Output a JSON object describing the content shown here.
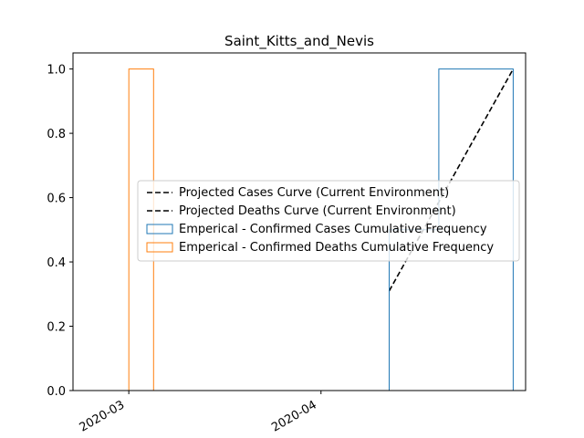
{
  "chart_data": {
    "type": "line",
    "title": "Saint_Kitts_and_Nevis",
    "xlabel": "",
    "ylabel": "",
    "x_axis": "date",
    "xlim": [
      "2020-02-21",
      "2020-05-04"
    ],
    "ylim": [
      0,
      1.05
    ],
    "x_tick_labels": [
      "2020-03",
      "2020-04"
    ],
    "x_tick_values": [
      "2020-03-01",
      "2020-04-01"
    ],
    "y_tick_labels": [
      "0.0",
      "0.2",
      "0.4",
      "0.6",
      "0.8",
      "1.0"
    ],
    "y_tick_values": [
      0,
      0.2,
      0.4,
      0.6,
      0.8,
      1.0
    ],
    "grid": false,
    "legend_position": "center-right",
    "series": [
      {
        "name": "Projected Cases Curve (Current Environment)",
        "kind": "line",
        "style": "dashed",
        "color": "#000000",
        "points": [
          [
            "2020-04-12",
            0.31
          ],
          [
            "2020-05-02",
            1.0
          ]
        ]
      },
      {
        "name": "Projected Deaths Curve (Current Environment)",
        "kind": "line",
        "style": "dashed",
        "color": "#000000",
        "points": []
      },
      {
        "name": "Emperical - Confirmed Cases Cumulative Frequency",
        "kind": "step",
        "color": "#1f77b4",
        "points": [
          [
            "2020-04-12",
            0
          ],
          [
            "2020-04-12",
            0.5
          ],
          [
            "2020-04-20",
            0.5
          ],
          [
            "2020-04-20",
            1.0
          ],
          [
            "2020-05-02",
            1.0
          ],
          [
            "2020-05-02",
            0
          ]
        ]
      },
      {
        "name": "Emperical - Confirmed Deaths Cumulative Frequency",
        "kind": "step",
        "color": "#ff7f0e",
        "points": [
          [
            "2020-02-25",
            0
          ],
          [
            "2020-03-01",
            0
          ],
          [
            "2020-03-01",
            1.0
          ],
          [
            "2020-03-05",
            1.0
          ],
          [
            "2020-03-05",
            0
          ]
        ]
      }
    ]
  }
}
